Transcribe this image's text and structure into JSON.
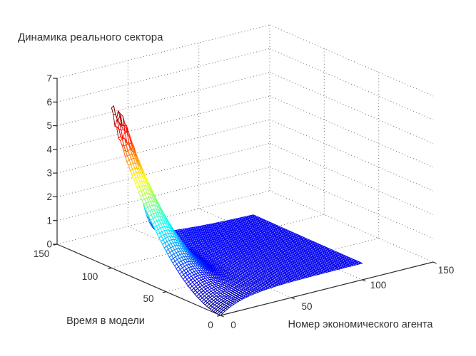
{
  "title": "Динамика реального сектора",
  "axes": {
    "z": {
      "ticks": [
        "0",
        "1",
        "2",
        "3",
        "4",
        "5",
        "6",
        "7"
      ]
    },
    "time": {
      "label": "Время в модели",
      "ticks": [
        "150",
        "100",
        "50",
        "0"
      ]
    },
    "agent": {
      "label": "Номер экономического агента",
      "ticks": [
        "0",
        "50",
        "100",
        "150"
      ]
    }
  },
  "chart_data": {
    "type": "surface",
    "subtype": "3d-mesh",
    "title": "Динамика реального сектора",
    "xlabel": "Номер экономического агента",
    "ylabel": "Время в модели",
    "zlabel": "",
    "xlim": [
      0,
      150
    ],
    "ylim": [
      0,
      150
    ],
    "zlim": [
      0,
      7
    ],
    "xticks": [
      0,
      50,
      100,
      150
    ],
    "yticks": [
      150,
      100,
      50,
      0
    ],
    "zticks": [
      0,
      1,
      2,
      3,
      4,
      5,
      6,
      7
    ],
    "grid": "dotted",
    "legend": "none",
    "colormap": "jet",
    "view": {
      "azimuth": -37.5,
      "elevation": 30
    },
    "data_domain": {
      "agent": [
        0,
        100
      ],
      "time": [
        0,
        100
      ]
    },
    "peak": {
      "value": 6.4,
      "at_agent": 0,
      "at_time": 100
    },
    "flat_level": 0.7,
    "surface_model": {
      "comment": "z(agent,time)=peak_amp*(t/100)^t_exp*exp(-(a/cap_width)^cap_exp)+mid_amp*(t/100)^mid_exp*exp(-a/mid_len)+base_amp*(1-exp(-a/base_len))+noise near peak",
      "peak_amp": 5.3,
      "t_exp": 2.0,
      "cap_width": 20,
      "cap_exp": 3,
      "mid_amp": 1.1,
      "mid_exp": 1.5,
      "mid_len": 30,
      "base_amp": 0.7,
      "base_len": 15,
      "noise_amp": 0.4,
      "zmax_color": 6.5,
      "mesh_divisions": 64
    },
    "sample_grid": {
      "agent_values": [
        0,
        25,
        50,
        75,
        100
      ],
      "time_values": [
        0,
        25,
        50,
        75,
        100
      ],
      "z_values": [
        [
          0.0,
          0.57,
          0.67,
          0.7,
          0.7
        ],
        [
          0.47,
          0.68,
          0.7,
          0.71,
          0.7
        ],
        [
          1.71,
          0.93,
          0.74,
          0.73,
          0.71
        ],
        [
          3.7,
          1.3,
          0.81,
          0.75,
          0.72
        ],
        [
          6.4,
          1.8,
          0.88,
          0.79,
          0.74
        ]
      ]
    }
  }
}
